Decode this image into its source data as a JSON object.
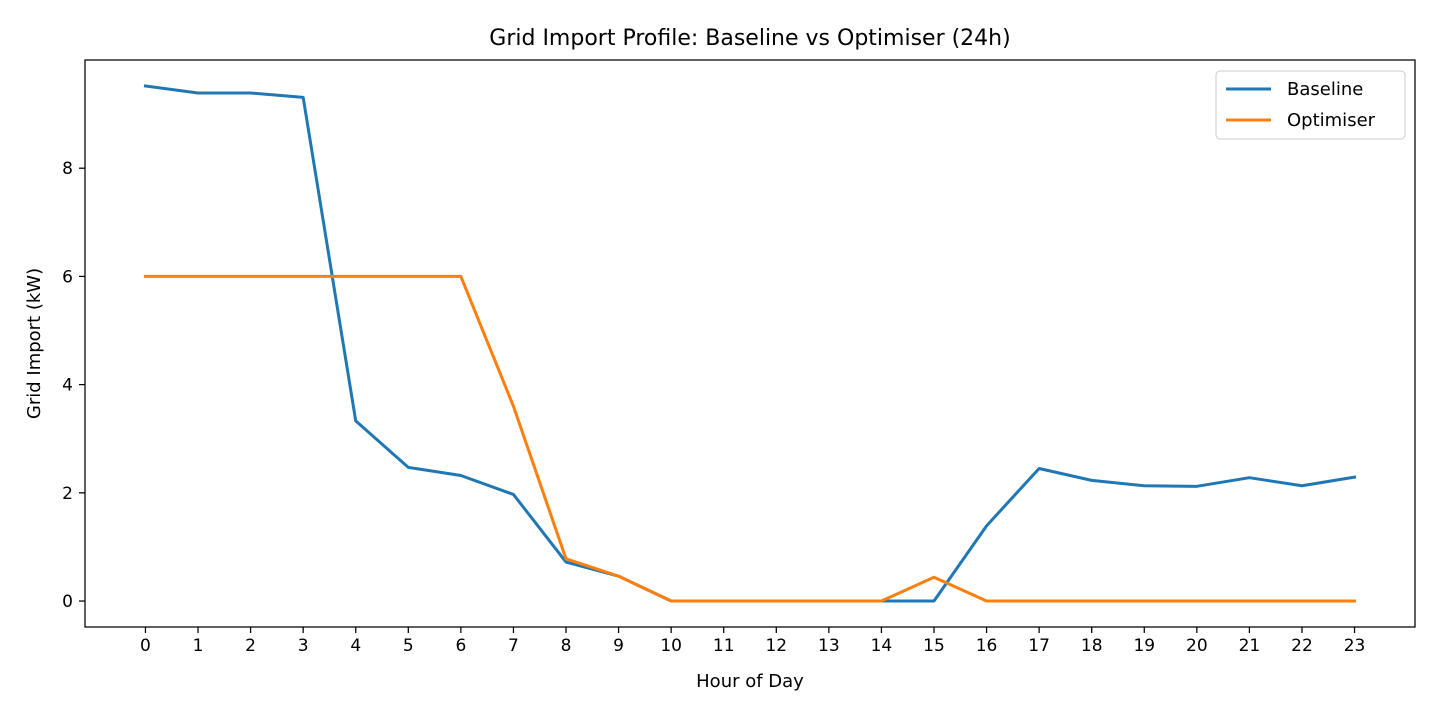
{
  "chart_data": {
    "type": "line",
    "title": "Grid Import Profile: Baseline vs Optimiser (24h)",
    "xlabel": "Hour of Day",
    "ylabel": "Grid Import (kW)",
    "x": [
      0,
      1,
      2,
      3,
      4,
      5,
      6,
      7,
      8,
      9,
      10,
      11,
      12,
      13,
      14,
      15,
      16,
      17,
      18,
      19,
      20,
      21,
      22,
      23
    ],
    "xlim": [
      -1.15,
      24.15
    ],
    "ylim": [
      -0.48,
      10.0
    ],
    "xticks": [
      0,
      1,
      2,
      3,
      4,
      5,
      6,
      7,
      8,
      9,
      10,
      11,
      12,
      13,
      14,
      15,
      16,
      17,
      18,
      19,
      20,
      21,
      22,
      23
    ],
    "yticks": [
      0,
      2,
      4,
      6,
      8
    ],
    "xtick_labels": [
      "0",
      "1",
      "2",
      "3",
      "4",
      "5",
      "6",
      "7",
      "8",
      "9",
      "10",
      "11",
      "12",
      "13",
      "14",
      "15",
      "16",
      "17",
      "18",
      "19",
      "20",
      "21",
      "22",
      "23"
    ],
    "ytick_labels": [
      "0",
      "2",
      "4",
      "6",
      "8"
    ],
    "grid": false,
    "legend_position": "top-right",
    "series": [
      {
        "name": "Baseline",
        "color": "#1f77b4",
        "values": [
          9.52,
          9.39,
          9.39,
          9.31,
          3.33,
          2.47,
          2.32,
          1.97,
          0.72,
          0.46,
          0.0,
          0.0,
          0.0,
          0.0,
          0.0,
          0.0,
          1.39,
          2.45,
          2.23,
          2.13,
          2.12,
          2.28,
          2.13,
          2.29
        ]
      },
      {
        "name": "Optimiser",
        "color": "#ff7f0e",
        "values": [
          6.0,
          6.0,
          6.0,
          6.0,
          6.0,
          6.0,
          6.0,
          3.6,
          0.78,
          0.46,
          0.0,
          0.0,
          0.0,
          0.0,
          0.0,
          0.44,
          0.0,
          0.0,
          0.0,
          0.0,
          0.0,
          0.0,
          0.0,
          0.0
        ]
      }
    ]
  }
}
